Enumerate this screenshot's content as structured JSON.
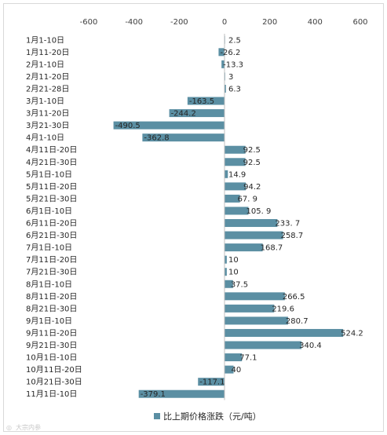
{
  "chart_data": {
    "type": "bar",
    "orientation": "horizontal",
    "categories": [
      "1月1-10日",
      "1月11-20日",
      "2月1-10日",
      "2月11-20日",
      "2月21-28日",
      "3月1-10日",
      "3月11-20日",
      "3月21-30日",
      "4月1-10日",
      "4月11日-20日",
      "4月21日-30日",
      "5月1日-10日",
      "5月11日-20日",
      "5月21日-30日",
      "6月1日-10日",
      "6月11日-20日",
      "6月21日-30日",
      "7月1日-10日",
      "7月11日-20日",
      "7月21日-30日",
      "8月1日-10日",
      "8月11日-20日",
      "8月21日-30日",
      "9月1日-10日",
      "9月11日-20日",
      "9月21日-30日",
      "10月1日-10日",
      "10月11日-20日",
      "10月21日-30日",
      "11月1日-10日"
    ],
    "series": [
      {
        "name": "比上期价格涨跌（元/吨）",
        "values": [
          2.5,
          -26.2,
          -13.3,
          3,
          6.3,
          -163.5,
          -244.2,
          -490.5,
          -362.8,
          92.5,
          92.5,
          14.9,
          94.2,
          67.9,
          105.9,
          233.7,
          258.7,
          168.7,
          10,
          10,
          37.5,
          266.5,
          219.6,
          280.7,
          524.2,
          340.4,
          77.1,
          40,
          -117.1,
          -379.1
        ],
        "labels": [
          "2.5",
          "-26.2",
          "-13.3",
          "3",
          "6.3",
          "-163.5",
          "-244.2",
          "-490.5",
          "-362.8",
          "92.5",
          "92.5",
          "14.9",
          "94.2",
          "67. 9",
          "105. 9",
          "233. 7",
          "258.7",
          "168.7",
          "10",
          "10",
          "37.5",
          "266.5",
          "219.6",
          "280.7",
          "524.2",
          "340.4",
          "77.1",
          "40",
          "-117.1",
          "-379.1"
        ]
      }
    ],
    "xticks": [
      -600,
      -400,
      -200,
      0,
      200,
      400,
      600
    ],
    "xlim": [
      -600,
      600
    ],
    "bar_color": "#5b8fa3",
    "grid": false,
    "legend_position": "bottom"
  },
  "watermark": "大宗内参"
}
